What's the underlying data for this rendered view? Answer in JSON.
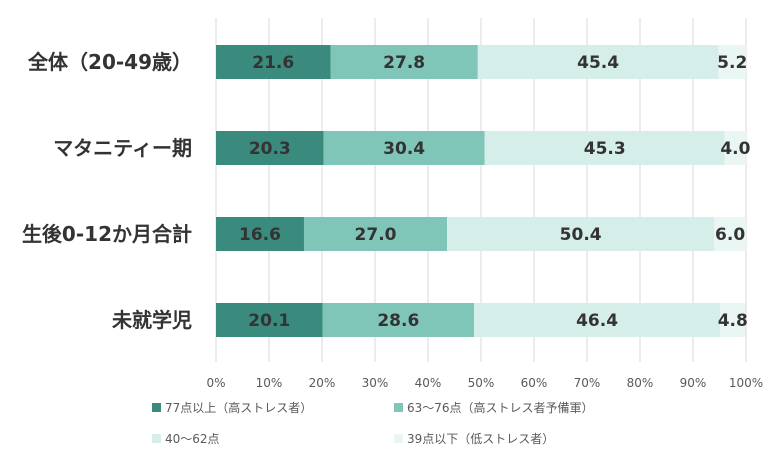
{
  "chart_data": {
    "type": "bar",
    "orientation": "horizontal",
    "stacked": "percent",
    "categories": [
      "全体（20-49歳）",
      "マタニティー期",
      "生後0-12か月合計",
      "未就学児"
    ],
    "series": [
      {
        "name": "77点以上（高ストレス者）",
        "color": "#3a8a7e",
        "values": [
          21.6,
          20.3,
          16.6,
          20.1
        ],
        "labels": [
          "21.6",
          "20.3",
          "16.6",
          "20.1"
        ]
      },
      {
        "name": "63〜76点（高ストレス者予備軍）",
        "color": "#7fc6b8",
        "values": [
          27.8,
          30.4,
          27.0,
          28.6
        ],
        "labels": [
          "27.8",
          "30.4",
          "27.0",
          "28.6"
        ]
      },
      {
        "name": "40〜62点",
        "color": "#d6eeea",
        "values": [
          45.4,
          45.3,
          50.4,
          46.4
        ],
        "labels": [
          "45.4",
          "45.3",
          "50.4",
          "46.4"
        ]
      },
      {
        "name": "39点以下（低ストレス者）",
        "color": "#eaf6f3",
        "values": [
          5.2,
          4.0,
          6.0,
          4.8
        ],
        "labels": [
          "5.2",
          "4.0",
          "6.0",
          "4.8"
        ]
      }
    ],
    "xlim": [
      0,
      100
    ],
    "xticks": [
      "0%",
      "10%",
      "20%",
      "30%",
      "40%",
      "50%",
      "60%",
      "70%",
      "80%",
      "90%",
      "100%"
    ],
    "grid": true,
    "legend_position": "bottom"
  }
}
